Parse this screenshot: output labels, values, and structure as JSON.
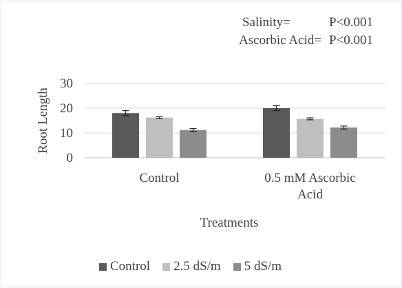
{
  "chart_data": {
    "type": "bar",
    "title": "",
    "xlabel": "Treatments",
    "ylabel": "Root Length",
    "ylim": [
      0,
      30
    ],
    "yticks": [
      0,
      10,
      20,
      30
    ],
    "categories": [
      [
        "Control"
      ],
      [
        "0.5 mM Ascorbic",
        "Acid"
      ]
    ],
    "series": [
      {
        "name": "Control",
        "color": "#595959",
        "values": [
          18.0,
          20.0
        ],
        "errors": [
          1.0,
          1.0
        ]
      },
      {
        "name": "2.5 dS/m",
        "color": "#bfbfbf",
        "values": [
          16.2,
          15.7
        ],
        "errors": [
          0.4,
          0.4
        ]
      },
      {
        "name": "5 dS/m",
        "color": "#8c8c8c",
        "values": [
          11.2,
          12.2
        ],
        "errors": [
          0.6,
          0.6
        ]
      }
    ],
    "grid": true,
    "legend_position": "bottom",
    "annotations": {
      "salinity_label": "Salinity=",
      "salinity_value": "P<0.001",
      "ascorbic_label": "Ascorbic Acid=",
      "ascorbic_value": "P<0.001"
    }
  }
}
